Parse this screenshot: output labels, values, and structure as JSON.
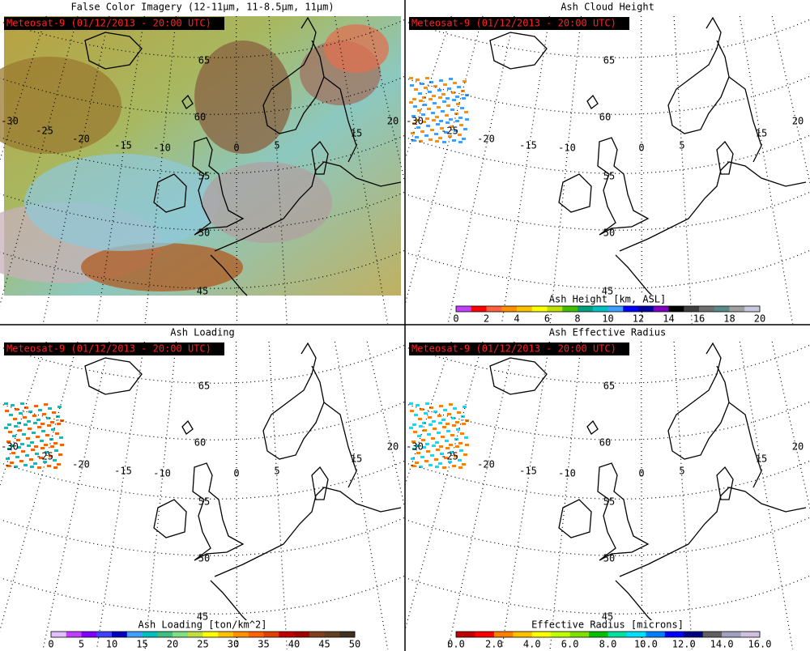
{
  "panels": [
    {
      "title": "False Color Imagery (12-11μm, 11-8.5μm, 11μm)",
      "stamp": "Meteosat-9  (01/12/2013 - 20:00 UTC)"
    },
    {
      "title": "Ash Cloud Height",
      "stamp": "Meteosat-9  (01/12/2013 - 20:00 UTC)",
      "colorbar": {
        "label": "Ash Height [km, ASL]",
        "ticks": [
          "0",
          "2",
          "4",
          "6",
          "8",
          "10",
          "12",
          "14",
          "16",
          "18",
          "20"
        ],
        "colors": [
          "#c040ff",
          "#ff0000",
          "#ff6040",
          "#ff9000",
          "#ffc000",
          "#ffff00",
          "#c0e000",
          "#40c000",
          "#00a080",
          "#00c0c0",
          "#40a0ff",
          "#0000ff",
          "#0000a0",
          "#8000c0",
          "#000000",
          "#404040",
          "#707070",
          "#5a8a8a",
          "#a0a0a0",
          "#c8c8e0"
        ]
      }
    },
    {
      "title": "Ash Loading",
      "stamp": "Meteosat-9  (01/12/2013 - 20:00 UTC)",
      "colorbar": {
        "label": "Ash Loading [ton/km^2]",
        "ticks": [
          "0",
          "5",
          "10",
          "15",
          "20",
          "25",
          "30",
          "35",
          "40",
          "45",
          "50"
        ],
        "colors": [
          "#e0c0ff",
          "#c040ff",
          "#8000ff",
          "#4040ff",
          "#0000c0",
          "#40a0ff",
          "#00c0c0",
          "#40c080",
          "#80e080",
          "#c0e040",
          "#ffff00",
          "#ffc000",
          "#ff9000",
          "#ff6000",
          "#e04000",
          "#c00000",
          "#a00000",
          "#804020",
          "#604020",
          "#403020"
        ]
      }
    },
    {
      "title": "Ash Effective Radius",
      "stamp": "Meteosat-9  (01/12/2013 - 20:00 UTC)",
      "colorbar": {
        "label": "Effective Radius [microns]",
        "ticks": [
          "0.0",
          "2.0",
          "4.0",
          "6.0",
          "8.0",
          "10.0",
          "12.0",
          "14.0",
          "16.0"
        ],
        "colors": [
          "#c00000",
          "#ff0000",
          "#ff8000",
          "#ffc000",
          "#ffff00",
          "#c0ff00",
          "#80e000",
          "#00c000",
          "#00e0a0",
          "#00e0ff",
          "#0080ff",
          "#0000ff",
          "#000080",
          "#606060",
          "#a0a0c0",
          "#d0c0e0"
        ]
      }
    }
  ],
  "graticule_labels": [
    "65",
    "60",
    "55",
    "50",
    "45",
    "-30",
    "-25",
    "-20",
    "-15",
    "-10",
    "0",
    "5",
    "15",
    "20"
  ]
}
